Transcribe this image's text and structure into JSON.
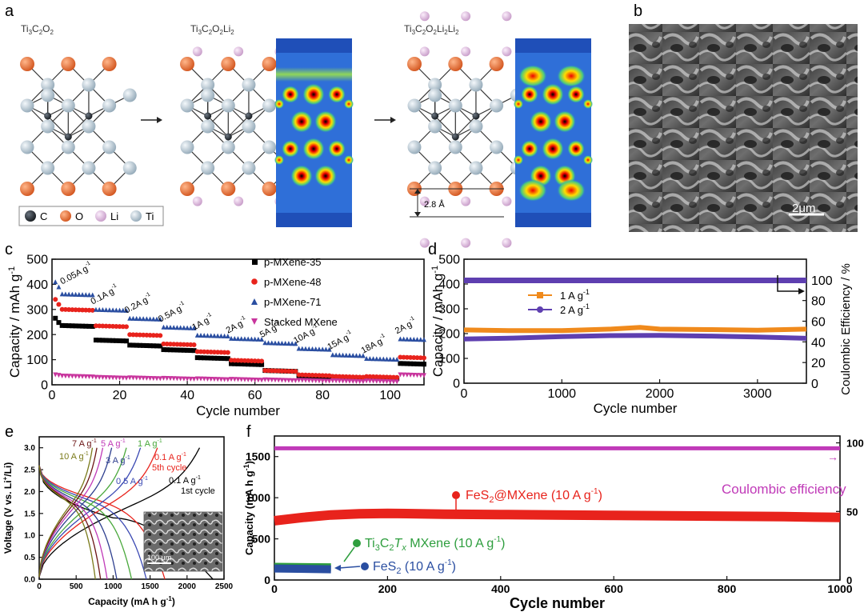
{
  "panel_labels": [
    "a",
    "b",
    "c",
    "d",
    "e",
    "f"
  ],
  "structures": {
    "labels": [
      "Ti3C2O2",
      "Ti3C2O2Li2",
      "Ti3C2O2Li2Li2"
    ],
    "interlayer_distance": "2.8 Å",
    "legend": [
      "C",
      "O",
      "Li",
      "Ti"
    ],
    "colors": {
      "C": "#2b3138",
      "O": "#e8672d",
      "Li": "#dcb6dd",
      "Ti": "#b6c7d3"
    }
  },
  "sem": {
    "scale_bar": "2μm",
    "inset_scale_bar": "100 μm"
  },
  "chart_data": [
    {
      "panel": "c",
      "type": "scatter",
      "xlabel": "Cycle number",
      "ylabel": "Capacity / mAh g",
      "ylabel_sup": "-1",
      "xlim": [
        0,
        110
      ],
      "ylim": [
        0,
        500
      ],
      "xticks": [
        0,
        20,
        40,
        60,
        80,
        100
      ],
      "yticks": [
        0,
        100,
        200,
        300,
        400,
        500
      ],
      "rate_labels": [
        "0.05A g",
        "0.1A g",
        "0.2A g",
        "0.5A g",
        "1A g",
        "2A g",
        "5A g",
        "10A g",
        "15A g",
        "18A g",
        "2A g"
      ],
      "rate_label_sup": "-1",
      "series": [
        {
          "name": "p-MXene-35",
          "color": "#000000",
          "marker": "square",
          "start": [
            265,
            248
          ],
          "steps": [
            236,
            178,
            158,
            140,
            108,
            84,
            57,
            36,
            30,
            28,
            85
          ]
        },
        {
          "name": "p-MXene-48",
          "color": "#e8231c",
          "marker": "circle",
          "start": [
            340,
            320
          ],
          "steps": [
            300,
            235,
            200,
            163,
            132,
            98,
            57,
            40,
            34,
            33,
            110
          ]
        },
        {
          "name": "p-MXene-71",
          "color": "#2a4ea1",
          "marker": "triangle",
          "start": [
            410,
            390
          ],
          "steps": [
            362,
            300,
            265,
            230,
            198,
            185,
            168,
            145,
            120,
            105,
            183
          ]
        },
        {
          "name": "Stacked MXene",
          "color": "#c8359d",
          "marker": "triangle-down",
          "start": [
            40,
            38
          ],
          "steps": [
            35,
            30,
            28,
            26,
            24,
            22,
            20,
            18,
            16,
            15,
            40
          ]
        }
      ]
    },
    {
      "panel": "d",
      "type": "line",
      "xlabel": "Cycle number",
      "ylabel": "Capacity / mAh g",
      "ylabel_sup": "-1",
      "y2label": "Coulombic Efficiency / %",
      "xlim": [
        0,
        3500
      ],
      "ylim": [
        0,
        500
      ],
      "y2lim": [
        0,
        120
      ],
      "xticks": [
        0,
        1000,
        2000,
        3000
      ],
      "yticks": [
        0,
        100,
        200,
        300,
        400,
        500
      ],
      "y2ticks": [
        0,
        20,
        40,
        60,
        80,
        100
      ],
      "series": [
        {
          "name": "1 A g",
          "name_sup": "-1",
          "color": "#f08a1c",
          "marker": "square",
          "x": [
            0,
            500,
            1000,
            1500,
            1800,
            2000,
            2500,
            3000,
            3500
          ],
          "y": [
            215,
            212,
            212,
            218,
            225,
            218,
            216,
            214,
            218
          ]
        },
        {
          "name": "2 A g",
          "name_sup": "-1",
          "color": "#5e3fb0",
          "marker": "circle",
          "x": [
            0,
            500,
            1000,
            1500,
            2000,
            2500,
            3000,
            3500
          ],
          "y": [
            178,
            182,
            188,
            192,
            193,
            190,
            186,
            181
          ]
        },
        {
          "name": "Coulombic efficiency",
          "color": "#5e3fb0",
          "axis": "y2",
          "x": [
            0,
            3500
          ],
          "y": [
            99.5,
            99.5
          ]
        }
      ]
    },
    {
      "panel": "e",
      "type": "line",
      "xlabel": "Capacity (mA h g",
      "xlabel_sup": "-1",
      "xlabel_end": ")",
      "ylabel": "Voltage (V vs. Li",
      "ylabel_sup": "+",
      "ylabel_end": "/Li)",
      "xlim": [
        0,
        2500
      ],
      "ylim": [
        0,
        3.25
      ],
      "xticks": [
        0,
        500,
        1000,
        1500,
        2000,
        2500
      ],
      "yticks": [
        0.0,
        0.5,
        1.0,
        1.5,
        2.0,
        2.5,
        3.0
      ],
      "series": [
        {
          "name": "0.1 A g",
          "name_sup": "-1",
          "note": "1st cycle",
          "color": "#000000",
          "discharge_cap": 2350,
          "charge_cap": 2170,
          "plateau_cap": 1000
        },
        {
          "name": "0.1 A g",
          "name_sup": "-1",
          "note": "5th cycle",
          "color": "#e8231c",
          "discharge_cap": 1700,
          "charge_cap": 1600
        },
        {
          "name": "0.5 A g",
          "name_sup": "-1",
          "color": "#3b49b3",
          "discharge_cap": 1450,
          "charge_cap": 1370
        },
        {
          "name": "1 A g",
          "name_sup": "-1",
          "color": "#49a83b",
          "discharge_cap": 1250,
          "charge_cap": 1180
        },
        {
          "name": "3 A g",
          "name_sup": "-1",
          "color": "#2e3f8f",
          "discharge_cap": 1050,
          "charge_cap": 980
        },
        {
          "name": "5 A g",
          "name_sup": "-1",
          "color": "#c03ab8",
          "discharge_cap": 920,
          "charge_cap": 860
        },
        {
          "name": "7 A g",
          "name_sup": "-1",
          "color": "#6b1414",
          "discharge_cap": 830,
          "charge_cap": 780
        },
        {
          "name": "10 A g",
          "name_sup": "-1",
          "color": "#7a7a1a",
          "discharge_cap": 760,
          "charge_cap": 720
        }
      ]
    },
    {
      "panel": "f",
      "type": "scatter",
      "xlabel": "Cycle number",
      "ylabel": "Capacity (mA h g",
      "ylabel_sup": "-1",
      "ylabel_end": ")",
      "xlim": [
        0,
        1000
      ],
      "ylim": [
        0,
        1750
      ],
      "y2lim": [
        0,
        105
      ],
      "xticks": [
        0,
        200,
        400,
        600,
        800,
        1000
      ],
      "yticks": [
        0,
        500,
        1000,
        1500
      ],
      "y2ticks": [
        0,
        50,
        100
      ],
      "series": [
        {
          "name": "Coulombic efficiency",
          "color": "#c03ab8",
          "axis": "y2",
          "x": [
            0,
            1000
          ],
          "y": [
            96,
            96
          ]
        },
        {
          "name": "FeS2@MXene (10 A g-1)",
          "color": "#e8231c",
          "x": [
            0,
            50,
            100,
            150,
            200,
            300,
            400,
            500,
            600,
            700,
            800,
            900,
            1000
          ],
          "y": [
            720,
            760,
            790,
            805,
            810,
            800,
            795,
            790,
            785,
            780,
            775,
            770,
            760
          ]
        },
        {
          "name": "Ti3C2Tx MXene (10 A g-1)",
          "color": "#2e9e3e",
          "x": [
            0,
            100
          ],
          "y": [
            160,
            155
          ]
        },
        {
          "name": "FeS2 (10 A g-1)",
          "color": "#2a4ea1",
          "x": [
            0,
            100
          ],
          "y": [
            140,
            130
          ]
        }
      ],
      "annotations": [
        "FeS",
        "@MXene (10 A g",
        "Ti",
        "C",
        "T",
        "MXene (10 A g",
        "FeS",
        "(10 A g",
        "Coulombic efficiency"
      ]
    }
  ]
}
